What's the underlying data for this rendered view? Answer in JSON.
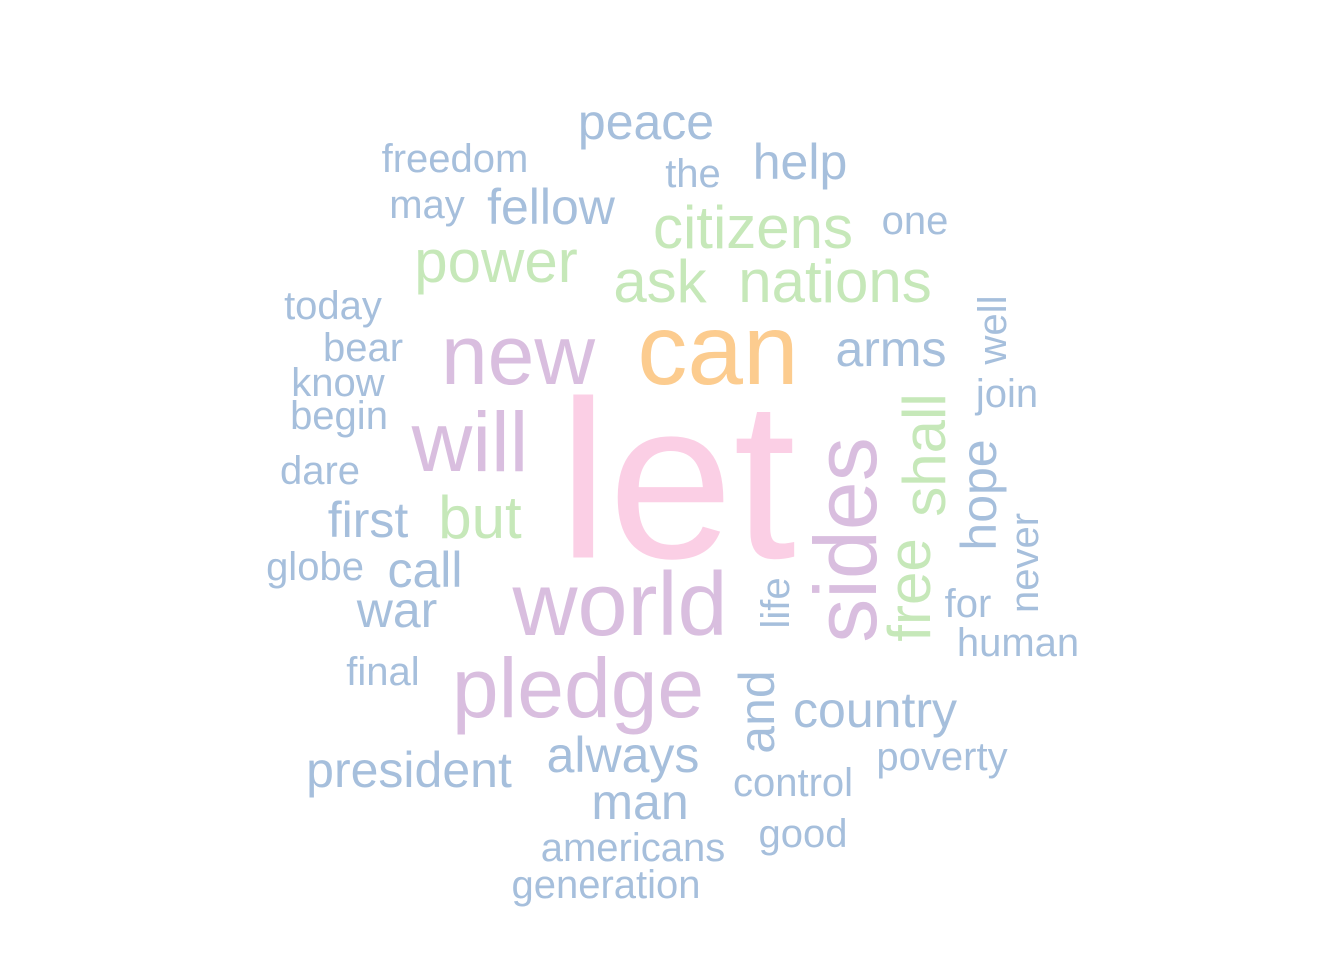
{
  "palette": {
    "pink": "#fbcfe5",
    "orange": "#fccc8f",
    "lavender": "#d9bedf",
    "green": "#c6e8b9",
    "blue": "#a6bfdc"
  },
  "words": [
    {
      "text": "let",
      "color": "pink",
      "weight": 1
    },
    {
      "text": "can",
      "color": "orange",
      "weight": 0.55
    },
    {
      "text": "new",
      "color": "lavender",
      "weight": 0.42
    },
    {
      "text": "world",
      "color": "lavender",
      "weight": 0.42
    },
    {
      "text": "sides",
      "color": "lavender",
      "weight": 0.42
    },
    {
      "text": "will",
      "color": "lavender",
      "weight": 0.42
    },
    {
      "text": "pledge",
      "color": "lavender",
      "weight": 0.42
    },
    {
      "text": "citizens",
      "color": "green",
      "weight": 0.3
    },
    {
      "text": "ask",
      "color": "green",
      "weight": 0.3
    },
    {
      "text": "nations",
      "color": "green",
      "weight": 0.3
    },
    {
      "text": "power",
      "color": "green",
      "weight": 0.3
    },
    {
      "text": "but",
      "color": "green",
      "weight": 0.3
    },
    {
      "text": "shall",
      "color": "green",
      "weight": 0.3
    },
    {
      "text": "free",
      "color": "green",
      "weight": 0.3
    },
    {
      "text": "peace",
      "color": "blue",
      "weight": 0.2
    },
    {
      "text": "help",
      "color": "blue",
      "weight": 0.2
    },
    {
      "text": "fellow",
      "color": "blue",
      "weight": 0.2
    },
    {
      "text": "arms",
      "color": "blue",
      "weight": 0.2
    },
    {
      "text": "first",
      "color": "blue",
      "weight": 0.2
    },
    {
      "text": "call",
      "color": "blue",
      "weight": 0.2
    },
    {
      "text": "war",
      "color": "blue",
      "weight": 0.2
    },
    {
      "text": "hope",
      "color": "blue",
      "weight": 0.2
    },
    {
      "text": "and",
      "color": "blue",
      "weight": 0.2
    },
    {
      "text": "country",
      "color": "blue",
      "weight": 0.2
    },
    {
      "text": "president",
      "color": "blue",
      "weight": 0.2
    },
    {
      "text": "always",
      "color": "blue",
      "weight": 0.2
    },
    {
      "text": "man",
      "color": "blue",
      "weight": 0.2
    },
    {
      "text": "freedom",
      "color": "blue",
      "weight": 0.1
    },
    {
      "text": "the",
      "color": "blue",
      "weight": 0.1
    },
    {
      "text": "may",
      "color": "blue",
      "weight": 0.1
    },
    {
      "text": "one",
      "color": "blue",
      "weight": 0.1
    },
    {
      "text": "today",
      "color": "blue",
      "weight": 0.1
    },
    {
      "text": "bear",
      "color": "blue",
      "weight": 0.1
    },
    {
      "text": "know",
      "color": "blue",
      "weight": 0.1
    },
    {
      "text": "begin",
      "color": "blue",
      "weight": 0.1
    },
    {
      "text": "well",
      "color": "blue",
      "weight": 0.1
    },
    {
      "text": "join",
      "color": "blue",
      "weight": 0.1
    },
    {
      "text": "dare",
      "color": "blue",
      "weight": 0.1
    },
    {
      "text": "globe",
      "color": "blue",
      "weight": 0.1
    },
    {
      "text": "life",
      "color": "blue",
      "weight": 0.1
    },
    {
      "text": "never",
      "color": "blue",
      "weight": 0.1
    },
    {
      "text": "for",
      "color": "blue",
      "weight": 0.1
    },
    {
      "text": "human",
      "color": "blue",
      "weight": 0.1
    },
    {
      "text": "final",
      "color": "blue",
      "weight": 0.1
    },
    {
      "text": "poverty",
      "color": "blue",
      "weight": 0.1
    },
    {
      "text": "control",
      "color": "blue",
      "weight": 0.1
    },
    {
      "text": "good",
      "color": "blue",
      "weight": 0.1
    },
    {
      "text": "americans",
      "color": "blue",
      "weight": 0.1
    },
    {
      "text": "generation",
      "color": "blue",
      "weight": 0.1
    }
  ]
}
